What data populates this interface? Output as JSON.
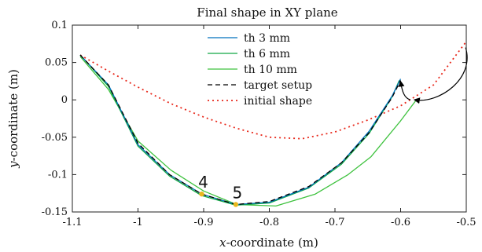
{
  "chart_data": {
    "type": "line",
    "title": "Final shape in XY plane",
    "xlabel_italic": "x",
    "xlabel_rest": "-coordinate (m)",
    "ylabel_italic": "y",
    "ylabel_rest": "-coordinate (m)",
    "xlim": [
      -1.1,
      -0.5
    ],
    "ylim": [
      -0.15,
      0.1
    ],
    "xticks": [
      -1.1,
      -1,
      -0.9,
      -0.8,
      -0.7,
      -0.6,
      -0.5
    ],
    "xtick_labels": [
      "-1.1",
      "-1",
      "-0.9",
      "-0.8",
      "-0.7",
      "-0.6",
      "-0.5"
    ],
    "yticks": [
      -0.15,
      -0.1,
      -0.05,
      0,
      0.05,
      0.1
    ],
    "ytick_labels": [
      "-0.15",
      "-0.1",
      "-0.05",
      "0",
      "0.05",
      "0.1"
    ],
    "grid": false,
    "legend_position": "top-center",
    "series": [
      {
        "name": "th 3 mm",
        "color": "#0072bd",
        "dash": "solid",
        "x": [
          -1.088,
          -1.045,
          -1.0,
          -0.952,
          -0.903,
          -0.851,
          -0.8,
          -0.74,
          -0.69,
          -0.648,
          -0.613,
          -0.6
        ],
        "y": [
          0.06,
          0.02,
          -0.06,
          -0.1,
          -0.126,
          -0.14,
          -0.137,
          -0.117,
          -0.084,
          -0.042,
          0.005,
          0.028
        ]
      },
      {
        "name": "th 6 mm",
        "color": "#10a845",
        "dash": "solid",
        "x": [
          -1.088,
          -1.045,
          -1.0,
          -0.952,
          -0.903,
          -0.851,
          -0.8,
          -0.74,
          -0.69,
          -0.648,
          -0.613,
          -0.602
        ],
        "y": [
          0.06,
          0.018,
          -0.062,
          -0.102,
          -0.128,
          -0.141,
          -0.138,
          -0.118,
          -0.086,
          -0.045,
          0.004,
          0.026
        ]
      },
      {
        "name": "th 10 mm",
        "color": "#3ec23e",
        "dash": "solid",
        "x": [
          -1.088,
          -1.045,
          -1.0,
          -0.95,
          -0.9,
          -0.85,
          -0.79,
          -0.73,
          -0.68,
          -0.645,
          -0.6,
          -0.576
        ],
        "y": [
          0.058,
          0.014,
          -0.055,
          -0.094,
          -0.122,
          -0.14,
          -0.142,
          -0.126,
          -0.1,
          -0.076,
          -0.028,
          0.0
        ]
      },
      {
        "name": "target setup",
        "color": "#000000",
        "dash": "dashed",
        "x": [
          -1.088,
          -1.045,
          -1.0,
          -0.952,
          -0.903,
          -0.851,
          -0.8,
          -0.74,
          -0.69,
          -0.648,
          -0.613,
          -0.6
        ],
        "y": [
          0.06,
          0.02,
          -0.058,
          -0.1,
          -0.126,
          -0.14,
          -0.136,
          -0.116,
          -0.084,
          -0.044,
          0.003,
          0.026
        ]
      },
      {
        "name": "initial shape",
        "color": "#e8291c",
        "dash": "dotted",
        "x": [
          -1.088,
          -1.04,
          -1.0,
          -0.95,
          -0.9,
          -0.85,
          -0.8,
          -0.75,
          -0.7,
          -0.65,
          -0.6,
          -0.55,
          -0.5
        ],
        "y": [
          0.06,
          0.036,
          0.017,
          -0.005,
          -0.023,
          -0.038,
          -0.05,
          -0.052,
          -0.043,
          -0.027,
          -0.008,
          0.02,
          0.078
        ]
      }
    ],
    "markers": [
      {
        "label": "4",
        "x": -0.903,
        "y": -0.126,
        "color": "#e8b81e"
      },
      {
        "label": "5",
        "x": -0.851,
        "y": -0.14,
        "color": "#e8b81e"
      }
    ],
    "arrow": {
      "from": [
        -0.501,
        0.07
      ],
      "to": [
        -0.578,
        0.0
      ],
      "second_from": [
        -0.585,
        0.0
      ],
      "second_to": [
        -0.6,
        0.024
      ]
    }
  }
}
